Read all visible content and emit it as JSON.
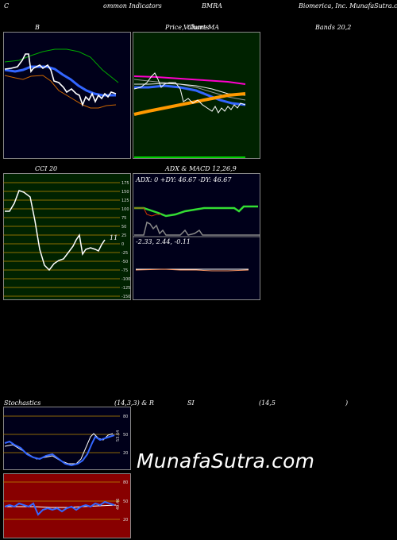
{
  "header": {
    "col1": "C",
    "col2": "ommon Indicators",
    "col3": "BMRA",
    "col4": "Biomerica, Inc. MunafaSutra.com"
  },
  "row1": {
    "bollinger_title": "B",
    "price_title_a": "Price,",
    "price_title_b": "Volume",
    "price_title_c": "Charts",
    "price_title_d": "MA",
    "bands_title": "Bands 20,2"
  },
  "row2": {
    "cci_title": "CCI 20",
    "cci_value": "11",
    "cci_ticks": [
      "175",
      "150",
      "125",
      "100",
      "75",
      "50",
      "25",
      "0",
      "-25",
      "-50",
      "-75",
      "-100",
      "-125",
      "-150",
      "-175"
    ],
    "adx_title": "ADX  & MACD 12,26,9",
    "adx_values": "ADX: 0  +DY: 46.67 -DY: 46.67",
    "macd_values": "-2.33,  2.44,  -0.11"
  },
  "row3": {
    "stoch_title": "Stochastics",
    "stoch_params": "(14,3,3) & R",
    "rsi_title": "SI",
    "rsi_params": "(14,5",
    "rsi_close": ")",
    "stoch_ticks": [
      "80",
      "50",
      "20"
    ],
    "stoch_value": "53.64",
    "rsi_ticks": [
      "80",
      "50",
      "20"
    ],
    "rsi_value": "49.46"
  },
  "watermark": "MunafaSutra.com",
  "colors": {
    "bollinger_bg": "#00001a",
    "price_bg": "#002200",
    "cci_bg": "#002200",
    "adx_bg": "#00001a",
    "stoch_bg": "#00001a",
    "rsi_bg": "#880000"
  }
}
